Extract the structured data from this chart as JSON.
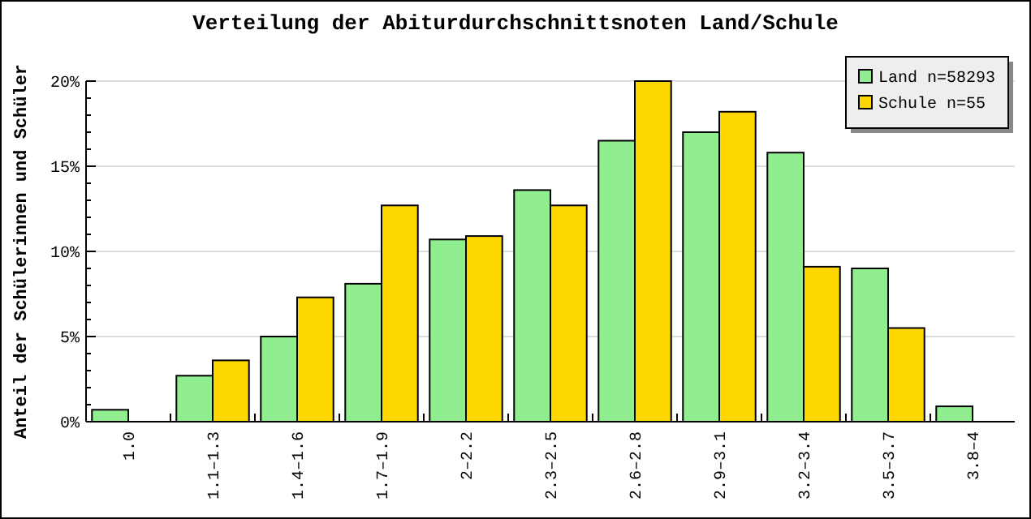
{
  "chart_data": {
    "type": "bar",
    "title": "Verteilung der Abiturdurchschnittsnoten Land/Schule",
    "ylabel": "Anteil der Schülerinnen und Schüler",
    "categories": [
      "1.0",
      "1.1–1.3",
      "1.4–1.6",
      "1.7–1.9",
      "2–2.2",
      "2.3–2.5",
      "2.6–2.8",
      "2.9–3.1",
      "3.2–3.4",
      "3.5–3.7",
      "3.8–4"
    ],
    "series": [
      {
        "name": "Land n=58293",
        "color": "#90ee90",
        "values": [
          0.7,
          2.7,
          5.0,
          8.1,
          10.7,
          13.6,
          16.5,
          17.0,
          15.8,
          9.0,
          0.9
        ]
      },
      {
        "name": "Schule n=55",
        "color": "#ffd700",
        "values": [
          0,
          3.6,
          7.3,
          12.7,
          10.9,
          12.7,
          20.0,
          18.2,
          9.1,
          5.5,
          0
        ]
      }
    ],
    "ylim": [
      0,
      20
    ],
    "yticks": [
      {
        "value": 0,
        "label": "0%"
      },
      {
        "value": 1,
        "label": null
      },
      {
        "value": 2,
        "label": null
      },
      {
        "value": 3,
        "label": null
      },
      {
        "value": 4,
        "label": null
      },
      {
        "value": 5,
        "label": "5%"
      },
      {
        "value": 6,
        "label": null
      },
      {
        "value": 7,
        "label": null
      },
      {
        "value": 8,
        "label": null
      },
      {
        "value": 9,
        "label": null
      },
      {
        "value": 10,
        "label": "10%"
      },
      {
        "value": 11,
        "label": null
      },
      {
        "value": 12,
        "label": null
      },
      {
        "value": 13,
        "label": null
      },
      {
        "value": 14,
        "label": null
      },
      {
        "value": 15,
        "label": "15%"
      },
      {
        "value": 16,
        "label": null
      },
      {
        "value": 17,
        "label": null
      },
      {
        "value": 18,
        "label": null
      },
      {
        "value": 19,
        "label": null
      },
      {
        "value": 20,
        "label": "20%"
      }
    ],
    "grid": "y",
    "legend": "top right"
  }
}
